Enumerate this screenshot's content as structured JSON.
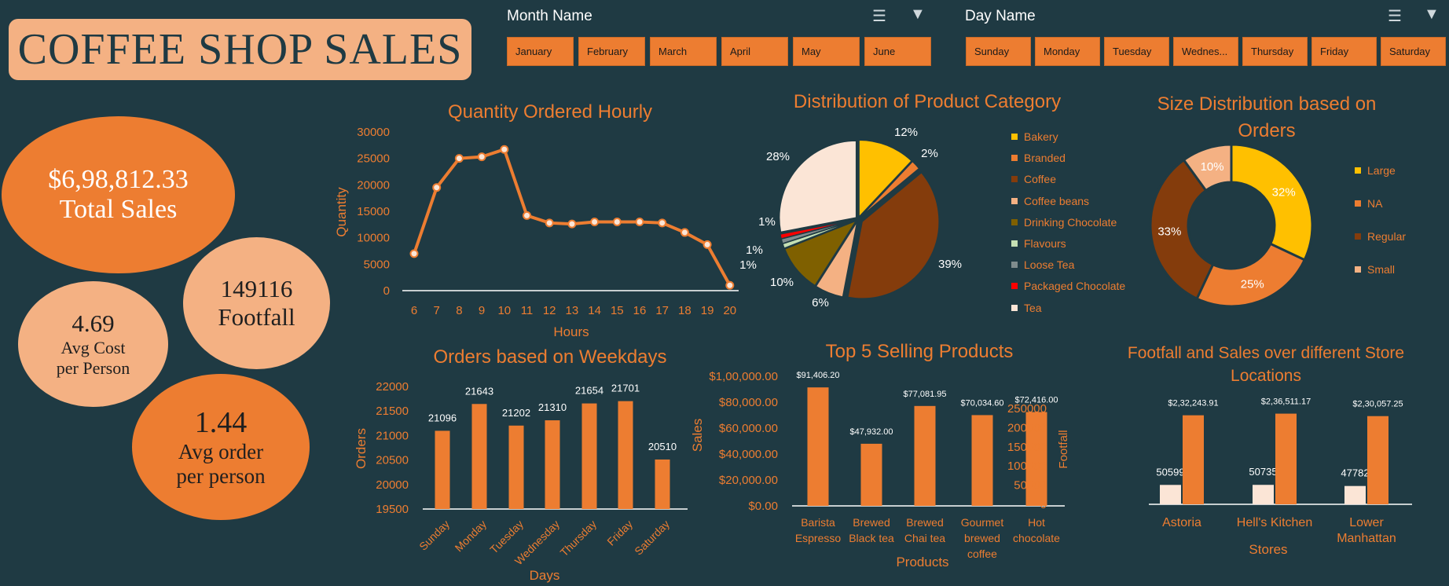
{
  "dashboard_title": "COFFEE SHOP SALES",
  "slicers": {
    "month": {
      "title": "Month Name",
      "items": [
        "January",
        "February",
        "March",
        "April",
        "May",
        "June"
      ]
    },
    "day": {
      "title": "Day Name",
      "items": [
        "Sunday",
        "Monday",
        "Tuesday",
        "Wednes...",
        "Thursday",
        "Friday",
        "Saturday"
      ]
    }
  },
  "kpis": {
    "total_sales": {
      "value": "$6,98,812.33",
      "label": "Total Sales"
    },
    "footfall": {
      "value": "149116",
      "label": "Footfall"
    },
    "avg_cost": {
      "value": "4.69",
      "label_line1": "Avg Cost",
      "label_line2": "per Person"
    },
    "avg_order": {
      "value": "1.44",
      "label_line1": "Avg order",
      "label_line2": "per person"
    }
  },
  "colors": {
    "accent": "#ed7d31",
    "light": "#f4b183",
    "background": "#1f3a43",
    "text_light": "#ffffff"
  },
  "chart_data": [
    {
      "id": "hourly",
      "type": "line",
      "title": "Quantity Ordered Hourly",
      "xlabel": "Hours",
      "ylabel": "Quantity",
      "x": [
        6,
        7,
        8,
        9,
        10,
        11,
        12,
        13,
        14,
        15,
        16,
        17,
        18,
        19,
        20
      ],
      "values": [
        7000,
        19500,
        25000,
        25300,
        26700,
        14200,
        12800,
        12600,
        13000,
        13000,
        13000,
        12800,
        11000,
        8700,
        1000
      ],
      "ylim": [
        0,
        30000
      ],
      "yticks": [
        0,
        5000,
        10000,
        15000,
        20000,
        25000,
        30000
      ],
      "grid": false
    },
    {
      "id": "category",
      "type": "pie",
      "title": "Distribution of Product Category",
      "labels": [
        "Bakery",
        "Branded",
        "Coffee",
        "Coffee beans",
        "Drinking Chocolate",
        "Flavours",
        "Loose Tea",
        "Packaged Chocolate",
        "Tea"
      ],
      "values": [
        12,
        2,
        39,
        6,
        10,
        1,
        1,
        1,
        28
      ],
      "data_labels": [
        "12%",
        "2%",
        "39%",
        "6%",
        "10%",
        "1%",
        "1%",
        "1%",
        "28%"
      ],
      "colors": [
        "#ffc000",
        "#ed7d31",
        "#843c0c",
        "#f4b183",
        "#7f6000",
        "#c5e0b4",
        "#7f8c8d",
        "#ff0000",
        "#fbe5d6"
      ],
      "legend_position": "right"
    },
    {
      "id": "size",
      "type": "pie",
      "title": "Size Distribution based on Orders",
      "labels": [
        "Large",
        "NA",
        "Regular",
        "Small"
      ],
      "values": [
        32,
        25,
        33,
        10
      ],
      "data_labels": [
        "32%",
        "25%",
        "33%",
        "10%"
      ],
      "colors": [
        "#ffc000",
        "#ed7d31",
        "#843c0c",
        "#f4b183"
      ],
      "legend_position": "right"
    },
    {
      "id": "weekdays",
      "type": "bar",
      "title": "Orders based on Weekdays",
      "xlabel": "Days",
      "ylabel": "Orders",
      "categories": [
        "Sunday",
        "Monday",
        "Tuesday",
        "Wednesday",
        "Thursday",
        "Friday",
        "Saturday"
      ],
      "values": [
        21096,
        21643,
        21202,
        21310,
        21654,
        21701,
        20510
      ],
      "data_labels": [
        "21096",
        "21643",
        "21202",
        "21310",
        "21654",
        "21701",
        "20510"
      ],
      "ylim": [
        19500,
        22000
      ],
      "yticks": [
        19500,
        20000,
        20500,
        21000,
        21500,
        22000
      ]
    },
    {
      "id": "top5",
      "type": "bar",
      "title": "Top 5 Selling Products",
      "xlabel": "Products",
      "ylabel": "Sales",
      "categories": [
        [
          "Barista",
          "Espresso"
        ],
        [
          "Brewed",
          "Black tea"
        ],
        [
          "Brewed",
          "Chai tea"
        ],
        [
          "Gourmet",
          "brewed",
          "coffee"
        ],
        [
          "Hot",
          "chocolate"
        ]
      ],
      "values": [
        91406.2,
        47932.0,
        77081.95,
        70034.6,
        72416.0
      ],
      "data_labels": [
        "$91,406.20",
        "$47,932.00",
        "$77,081.95",
        "$70,034.60",
        "$72,416.00"
      ],
      "ylim": [
        0,
        100000
      ],
      "yticks": [
        0,
        20000,
        40000,
        60000,
        80000,
        100000
      ],
      "ytick_labels": [
        "$0.00",
        "$20,000.00",
        "$40,000.00",
        "$60,000.00",
        "$80,000.00",
        "$1,00,000.00"
      ]
    },
    {
      "id": "stores",
      "type": "bar",
      "title": "Footfall and Sales over different Store Locations",
      "xlabel": "Stores",
      "ylabel": "Footfall",
      "categories": [
        [
          "Astoria"
        ],
        [
          "Hell's Kitchen"
        ],
        [
          "Lower",
          "Manhattan"
        ]
      ],
      "series": [
        {
          "values": [
            50599,
            50735,
            47782
          ],
          "data_labels": [
            "50599",
            "50735",
            "47782"
          ],
          "color": "#fbe5d6"
        },
        {
          "values": [
            232243.91,
            236511.17,
            230057.25
          ],
          "data_labels": [
            "$2,32,243.91",
            "$2,36,511.17",
            "$2,30,057.25"
          ],
          "color": "#ed7d31"
        }
      ],
      "ylim": [
        0,
        250000
      ],
      "yticks": [
        0,
        50000,
        100000,
        150000,
        200000,
        250000
      ]
    }
  ]
}
